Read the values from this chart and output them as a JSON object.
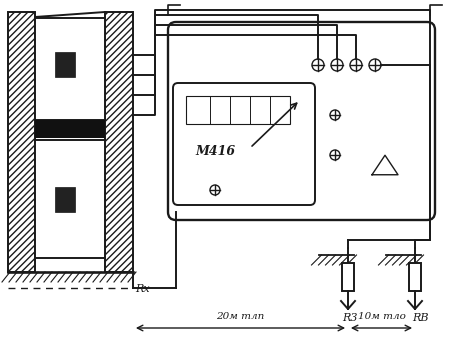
{
  "bg_color": "#ffffff",
  "lc": "#1a1a1a",
  "lw": 1.4,
  "figsize": [
    4.7,
    3.39
  ],
  "dpi": 100,
  "meter_label": "М416",
  "label_rx": "Rx",
  "label_r3": "R3",
  "label_rb": "RB",
  "label_dist1": "20м тлп",
  "label_dist2": "10м тло"
}
